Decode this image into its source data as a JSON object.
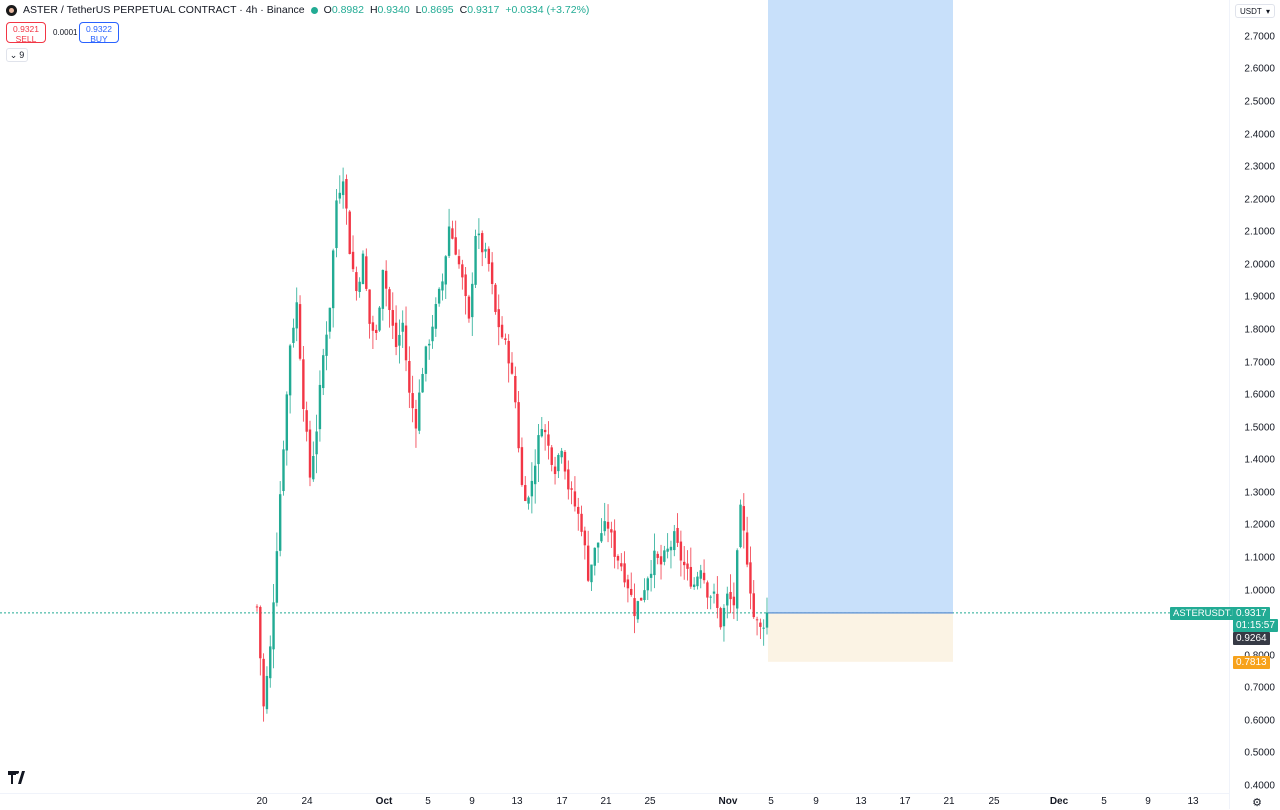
{
  "header": {
    "title": "ASTER / TetherUS PERPETUAL CONTRACT · 4h · Binance",
    "ohlc": [
      {
        "k": "O",
        "v": "0.8982"
      },
      {
        "k": "H",
        "v": "0.9340"
      },
      {
        "k": "L",
        "v": "0.8695"
      },
      {
        "k": "C",
        "v": "0.9317"
      }
    ],
    "change": "+0.0334 (+3.72%)"
  },
  "trade": {
    "sell_price": "0.9321",
    "sell_label": "SELL",
    "spread": "0.0001",
    "buy_price": "0.9322",
    "buy_label": "BUY"
  },
  "indicator_toggle": "9",
  "currency": "USDT",
  "price_axis": [
    "2.7000",
    "2.6000",
    "2.5000",
    "2.4000",
    "2.3000",
    "2.2000",
    "2.1000",
    "2.0000",
    "1.9000",
    "1.8000",
    "1.7000",
    "1.6000",
    "1.5000",
    "1.4000",
    "1.3000",
    "1.2000",
    "1.1000",
    "1.0000",
    "0.8000",
    "0.7000",
    "0.6000",
    "0.5000",
    "0.4000"
  ],
  "time_axis": [
    {
      "label": "20"
    },
    {
      "label": "24"
    },
    {
      "label": "Oct",
      "bold": true
    },
    {
      "label": "5"
    },
    {
      "label": "9"
    },
    {
      "label": "13"
    },
    {
      "label": "17"
    },
    {
      "label": "21"
    },
    {
      "label": "25"
    },
    {
      "label": "Nov",
      "bold": true
    },
    {
      "label": "5"
    },
    {
      "label": "9"
    },
    {
      "label": "13"
    },
    {
      "label": "17"
    },
    {
      "label": "21"
    },
    {
      "label": "25"
    },
    {
      "label": "Dec",
      "bold": true
    },
    {
      "label": "5"
    },
    {
      "label": "9"
    },
    {
      "label": "13"
    }
  ],
  "labels": {
    "symbol": "ASTERUSDT.P",
    "last_price": "0.9317",
    "countdown": "01:15:57",
    "crosshair_price": "0.9264",
    "stop_price": "0.7813"
  },
  "colors": {
    "up": "#22ab94",
    "down": "#f23645",
    "target_zone": "#c8e0fa",
    "stop_zone": "#fbf3e4",
    "stop_label": "#f7a21b",
    "dark_label": "#363a45"
  },
  "chart_data": {
    "type": "candlestick",
    "symbol": "ASTERUSDT.P",
    "interval": "4h",
    "price_range": [
      0.4,
      2.7
    ],
    "position": {
      "type": "long",
      "entry": 0.9317,
      "stop": 0.7813,
      "target": 2.72
    },
    "close_path": [
      [
        0,
        0.95
      ],
      [
        2,
        0.64
      ],
      [
        4,
        0.82
      ],
      [
        7,
        1.3
      ],
      [
        9,
        1.6
      ],
      [
        10,
        1.76
      ],
      [
        12,
        1.88
      ],
      [
        14,
        1.58
      ],
      [
        16,
        1.35
      ],
      [
        18,
        1.5
      ],
      [
        20,
        1.72
      ],
      [
        22,
        1.88
      ],
      [
        24,
        2.2
      ],
      [
        26,
        2.28
      ],
      [
        28,
        2.05
      ],
      [
        30,
        1.92
      ],
      [
        32,
        2.02
      ],
      [
        34,
        1.82
      ],
      [
        36,
        1.78
      ],
      [
        38,
        2.0
      ],
      [
        40,
        1.86
      ],
      [
        42,
        1.75
      ],
      [
        44,
        1.82
      ],
      [
        46,
        1.6
      ],
      [
        48,
        1.52
      ],
      [
        50,
        1.68
      ],
      [
        53,
        1.82
      ],
      [
        56,
        1.95
      ],
      [
        58,
        2.12
      ],
      [
        60,
        2.05
      ],
      [
        62,
        1.95
      ],
      [
        64,
        1.82
      ],
      [
        66,
        2.1
      ],
      [
        68,
        2.05
      ],
      [
        70,
        2.0
      ],
      [
        72,
        1.85
      ],
      [
        74,
        1.78
      ],
      [
        76,
        1.72
      ],
      [
        78,
        1.58
      ],
      [
        80,
        1.32
      ],
      [
        82,
        1.28
      ],
      [
        84,
        1.4
      ],
      [
        86,
        1.52
      ],
      [
        88,
        1.44
      ],
      [
        90,
        1.38
      ],
      [
        92,
        1.45
      ],
      [
        94,
        1.32
      ],
      [
        96,
        1.26
      ],
      [
        98,
        1.2
      ],
      [
        100,
        1.05
      ],
      [
        102,
        1.12
      ],
      [
        104,
        1.18
      ],
      [
        106,
        1.2
      ],
      [
        108,
        1.12
      ],
      [
        110,
        1.08
      ],
      [
        112,
        1.02
      ],
      [
        114,
        0.94
      ],
      [
        116,
        0.98
      ],
      [
        118,
        1.05
      ],
      [
        120,
        1.1
      ],
      [
        122,
        1.08
      ],
      [
        124,
        1.12
      ],
      [
        126,
        1.16
      ],
      [
        128,
        1.1
      ],
      [
        130,
        1.05
      ],
      [
        132,
        1.02
      ],
      [
        134,
        1.08
      ],
      [
        136,
        1.0
      ],
      [
        138,
        0.98
      ],
      [
        140,
        0.9
      ],
      [
        142,
        0.98
      ],
      [
        144,
        0.96
      ],
      [
        146,
        1.24
      ],
      [
        148,
        1.1
      ],
      [
        150,
        0.92
      ],
      [
        152,
        0.88
      ],
      [
        154,
        0.93
      ]
    ]
  }
}
